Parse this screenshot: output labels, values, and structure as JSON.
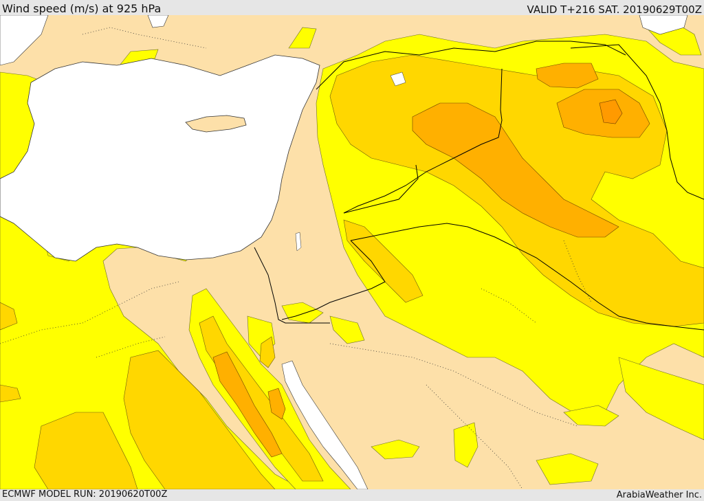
{
  "header": {
    "title": "Wind speed (m/s) at 925 hPa",
    "valid_time": "VALID T+216 SAT. 20190629T00Z"
  },
  "footer": {
    "model_run": "ECMWF MODEL RUN: 20190620T00Z",
    "credit": "ArabiaWeather Inc."
  },
  "map": {
    "colors": {
      "land_base": "#fde0a9",
      "water": "#ffffff",
      "band_1": "#ffff00",
      "band_2": "#ffd700",
      "band_3": "#ffb000",
      "band_4": "#ff9a00",
      "border": "#000000"
    }
  }
}
